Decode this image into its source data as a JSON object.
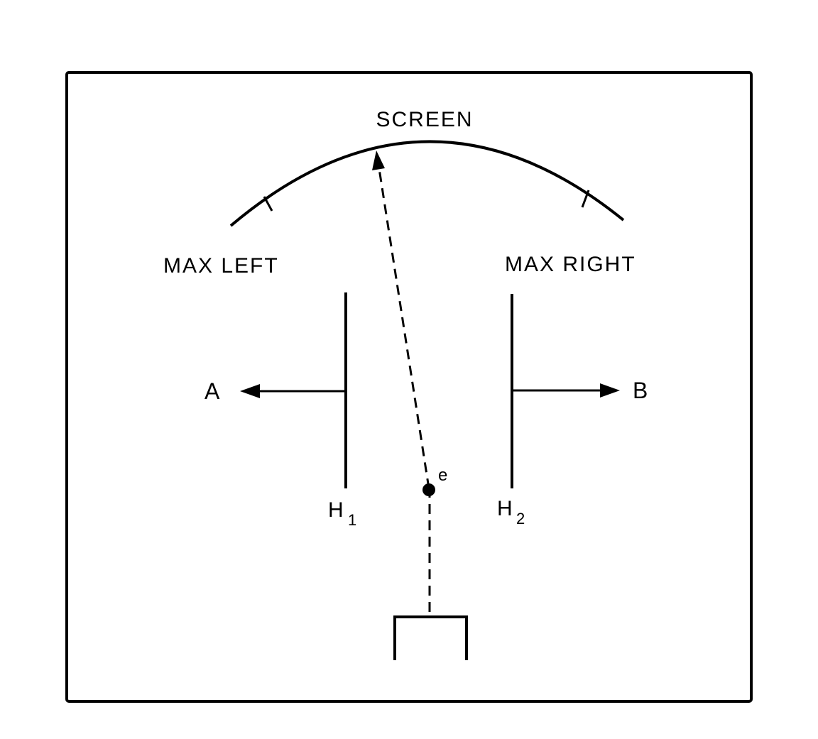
{
  "labels": {
    "screen": "SCREEN",
    "max_left": "MAX LEFT",
    "max_right": "MAX RIGHT",
    "a": "A",
    "b": "B",
    "e": "e",
    "h1_main": "H",
    "h1_sub": "1",
    "h2_main": "H",
    "h2_sub": "2"
  },
  "colors": {
    "ink": "#000000",
    "paper": "#ffffff"
  }
}
